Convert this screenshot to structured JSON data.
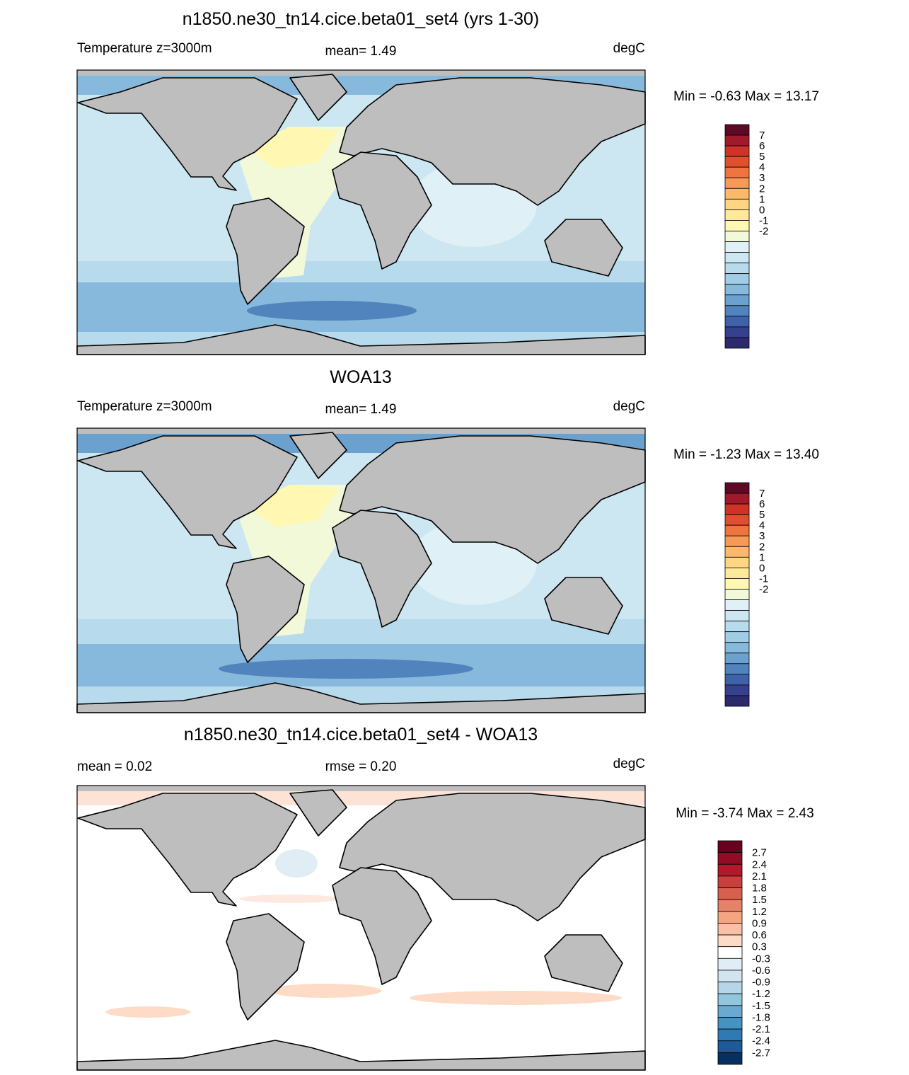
{
  "panels": [
    {
      "title": "n1850.ne30_tn14.cice.beta01_set4 (yrs 1-30)",
      "left_label": "Temperature z=3000m",
      "center_label": "mean=   1.49",
      "right_label": "degC",
      "min_max": "Min =  -0.63 Max =  13.17",
      "colorbar": {
        "labels": [
          "7",
          "6",
          "5",
          "4",
          "3",
          "2",
          "1",
          "0",
          "-1",
          "-2"
        ],
        "colors": [
          "#5e0a26",
          "#a01a2b",
          "#d03228",
          "#e0502f",
          "#ef7440",
          "#f89a55",
          "#fbb96a",
          "#fdd583",
          "#fee99b",
          "#fff7b2",
          "#f1f9d8",
          "#dff0f6",
          "#cce7f1",
          "#b7dbed",
          "#9fcde6",
          "#86b9db",
          "#6ba1ce",
          "#5183bd",
          "#3e61a8",
          "#35418f",
          "#2c2a6b"
        ]
      }
    },
    {
      "title": "WOA13",
      "left_label": "Temperature z=3000m",
      "center_label": "mean=   1.49",
      "right_label": "degC",
      "min_max": "Min =  -1.23 Max =  13.40",
      "colorbar": {
        "labels": [
          "7",
          "6",
          "5",
          "4",
          "3",
          "2",
          "1",
          "0",
          "-1",
          "-2"
        ],
        "colors": [
          "#5e0a26",
          "#a01a2b",
          "#d03228",
          "#e0502f",
          "#ef7440",
          "#f89a55",
          "#fbb96a",
          "#fdd583",
          "#fee99b",
          "#fff7b2",
          "#f1f9d8",
          "#dff0f6",
          "#cce7f1",
          "#b7dbed",
          "#9fcde6",
          "#86b9db",
          "#6ba1ce",
          "#5183bd",
          "#3e61a8",
          "#35418f",
          "#2c2a6b"
        ]
      }
    },
    {
      "title": "n1850.ne30_tn14.cice.beta01_set4 - WOA13",
      "left_label": "mean =   0.02",
      "center_label": "rmse =   0.20",
      "right_label": "degC",
      "min_max": "Min =  -3.74 Max =   2.43",
      "colorbar": {
        "labels": [
          "2.7",
          "2.4",
          "2.1",
          "1.8",
          "1.5",
          "1.2",
          "0.9",
          "0.6",
          "0.3",
          "-0.3",
          "-0.6",
          "-0.9",
          "-1.2",
          "-1.5",
          "-1.8",
          "-2.1",
          "-2.4",
          "-2.7"
        ],
        "colors": [
          "#67001f",
          "#940b26",
          "#b2182b",
          "#c6413e",
          "#d6604d",
          "#e58267",
          "#f4a582",
          "#f8c0a5",
          "#fddbc7",
          "#ffffff",
          "#e1edf5",
          "#d1e5f0",
          "#b4d6e8",
          "#92c5de",
          "#6aaad1",
          "#4393c3",
          "#2f79b5",
          "#1c5a9a",
          "#053061"
        ]
      }
    }
  ]
}
